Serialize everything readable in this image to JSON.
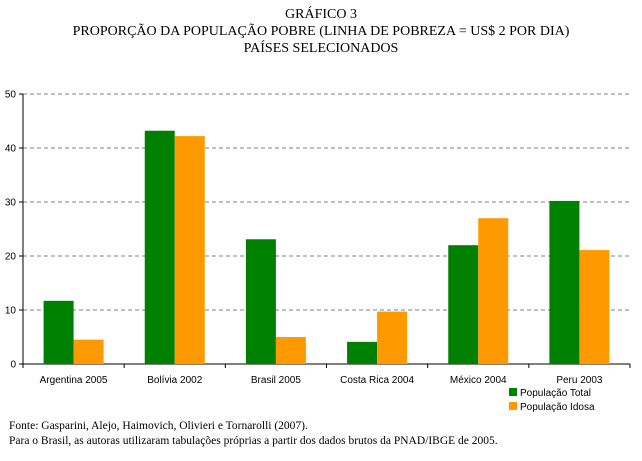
{
  "header": {
    "line1": "GRÁFICO 3",
    "line2": "PROPORÇÃO DA POPULAÇÃO POBRE (LINHA DE POBREZA = US$ 2 POR DIA)",
    "line3": "PAÍSES SELECIONADOS"
  },
  "chart_data": {
    "type": "bar",
    "categories": [
      "Argentina 2005",
      "Bolívia 2002",
      "Brasil 2005",
      "Costa Rica 2004",
      "México 2004",
      "Peru 2003"
    ],
    "series": [
      {
        "name": "População Total",
        "color": "#008000",
        "values": [
          11.7,
          43.2,
          23.1,
          4.1,
          22.0,
          30.2
        ]
      },
      {
        "name": "População Idosa",
        "color": "#FF9900",
        "values": [
          4.5,
          42.2,
          5.0,
          9.7,
          27.0,
          21.1
        ]
      }
    ],
    "ylim": [
      0,
      50
    ],
    "yticks": [
      "0",
      "10",
      "20",
      "30",
      "40",
      "50"
    ],
    "grid": true,
    "legend_position": "bottom-right"
  },
  "footer": {
    "source": "Fonte: Gasparini, Alejo,  Haimovich, Olivieri e Tornarolli (2007).",
    "note": "Para o Brasil, as autoras utilizaram tabulações próprias a partir dos dados brutos da PNAD/IBGE de 2005."
  }
}
